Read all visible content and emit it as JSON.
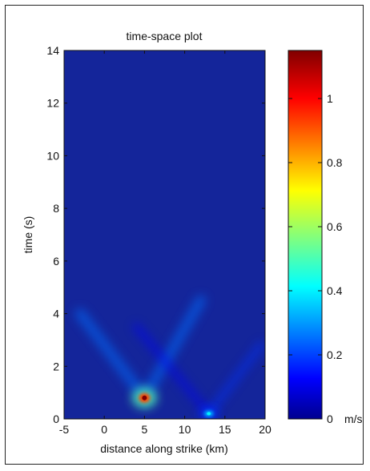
{
  "chart_data": {
    "type": "heatmap",
    "title": "time-space plot",
    "xlabel": "distance along strike (km)",
    "ylabel": "time (s)",
    "xlim": [
      -5,
      20
    ],
    "ylim": [
      0,
      14
    ],
    "x_ticks": [
      -5,
      0,
      5,
      10,
      15,
      20
    ],
    "y_ticks": [
      0,
      2,
      4,
      6,
      8,
      10,
      12,
      14
    ],
    "colorbar": {
      "ticks": [
        0,
        0.2,
        0.4,
        0.6,
        0.8,
        1
      ],
      "range": [
        0,
        1.15
      ],
      "unit": "m/s",
      "colormap": "jet"
    },
    "features": [
      {
        "x": 5,
        "y": 0.8,
        "value": 1.15
      },
      {
        "x": 13,
        "y": 0.2,
        "value": 0.4
      },
      {
        "x_start": 5,
        "y_start": 0.8,
        "x_end": -3,
        "y_end": 4,
        "value": 0.25
      },
      {
        "x_start": 5,
        "y_start": 0.8,
        "x_end": 12,
        "y_end": 4.5,
        "value": 0.25
      },
      {
        "x_start": 13,
        "y_start": 0.2,
        "x_end": 19.5,
        "y_end": 2.8,
        "value": 0.18
      },
      {
        "x_start": 13,
        "y_start": 0.2,
        "x_end": 4,
        "y_end": 3.5,
        "value": 0.12
      }
    ]
  }
}
